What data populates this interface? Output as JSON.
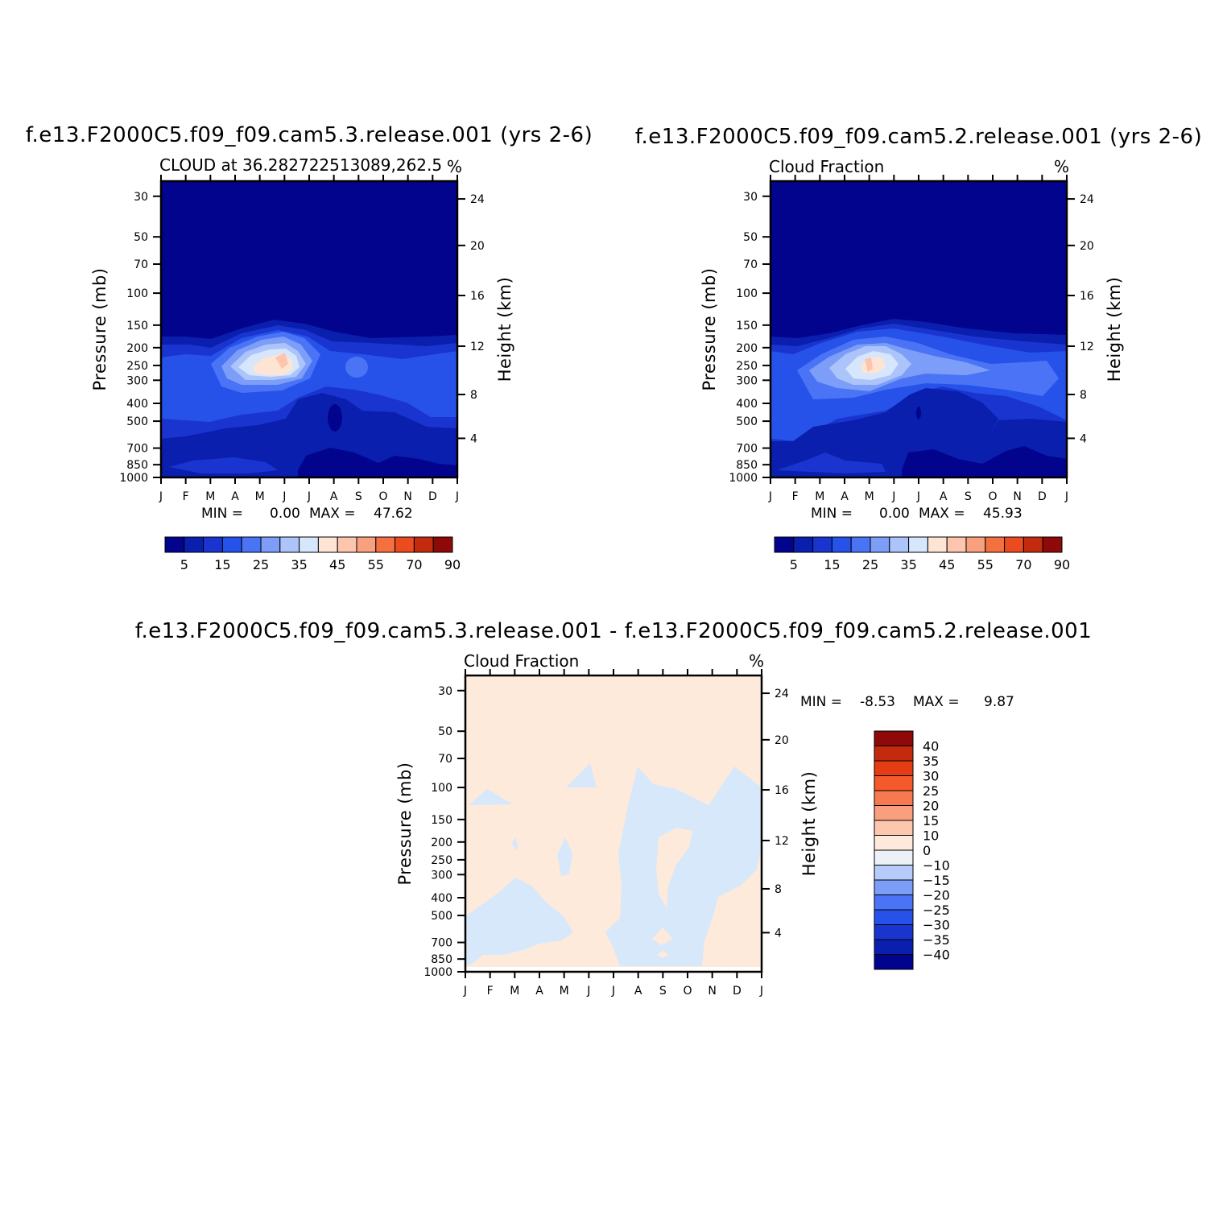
{
  "titles": {
    "panel1": "f.e13.F2000C5.f09_f09.cam5.3.release.001 (yrs 2-6)",
    "panel2": "f.e13.F2000C5.f09_f09.cam5.2.release.001 (yrs 2-6)",
    "diff": "f.e13.F2000C5.f09_f09.cam5.3.release.001 - f.e13.F2000C5.f09_f09.cam5.2.release.001"
  },
  "panels": [
    {
      "subtitle": "CLOUD at 36.282722513089,262.5",
      "units": "%",
      "stats": {
        "min_label": "MIN =",
        "min": "0.00",
        "max_label": "MAX =",
        "max": "47.62"
      }
    },
    {
      "subtitle": "Cloud Fraction",
      "units": "%",
      "stats": {
        "min_label": "MIN =",
        "min": "0.00",
        "max_label": "MAX =",
        "max": "45.93"
      }
    },
    {
      "subtitle": "Cloud Fraction",
      "units": "%",
      "stats": {
        "min_label": "MIN =",
        "min": "-8.53",
        "max_label": "MAX =",
        "max": "9.87"
      }
    }
  ],
  "axes": {
    "ylabel_left": "Pressure (mb)",
    "ylabel_right": "Height (km)",
    "months": [
      "J",
      "F",
      "M",
      "A",
      "M",
      "J",
      "J",
      "A",
      "S",
      "O",
      "N",
      "D",
      "J"
    ],
    "pressure_ticks": [
      "30",
      "50",
      "70",
      "100",
      "150",
      "200",
      "250",
      "300",
      "400",
      "500",
      "700",
      "850",
      "1000"
    ],
    "height_ticks": [
      "24",
      "20",
      "16",
      "12",
      "8",
      "4"
    ]
  },
  "colorbars": {
    "main_labels": [
      "5",
      "15",
      "25",
      "35",
      "45",
      "55",
      "70",
      "90"
    ],
    "main_colors": [
      "#03048e",
      "#0b1fae",
      "#1a35cf",
      "#2652ea",
      "#4a74f5",
      "#7c9ef8",
      "#adc4fb",
      "#d6e6fd",
      "#fee4d2",
      "#fdc5ad",
      "#f9a07e",
      "#f5703f",
      "#ec4a1f",
      "#c42b0e",
      "#8e0a08"
    ],
    "diff_labels": [
      "40",
      "35",
      "30",
      "25",
      "20",
      "15",
      "10",
      "0",
      "-10",
      "-15",
      "-20",
      "-25",
      "-30",
      "-35",
      "-40"
    ],
    "diff_colors": [
      "#8e0a08",
      "#c42b0e",
      "#e43d14",
      "#f55a2a",
      "#f7794f",
      "#f99e7e",
      "#fdc6ae",
      "#feeada",
      "#ecf1f8",
      "#b5ccfa",
      "#7c9ef8",
      "#4a74f5",
      "#2652ea",
      "#1a35cf",
      "#0b1fae",
      "#03048e"
    ]
  },
  "chart_data": [
    {
      "type": "heatmap",
      "title": "CLOUD at 36.282722513089,262.5",
      "x": [
        "J",
        "F",
        "M",
        "A",
        "M",
        "J",
        "J",
        "A",
        "S",
        "O",
        "N",
        "D",
        "J"
      ],
      "y_pressure_mb": [
        30,
        50,
        70,
        100,
        150,
        200,
        250,
        300,
        400,
        500,
        700,
        850,
        1000
      ],
      "value_range": [
        0.0,
        47.62
      ],
      "peak": {
        "month": "J",
        "pressure_mb": 230,
        "value": 47.62
      }
    },
    {
      "type": "heatmap",
      "title": "Cloud Fraction",
      "x": [
        "J",
        "F",
        "M",
        "A",
        "M",
        "J",
        "J",
        "A",
        "S",
        "O",
        "N",
        "D",
        "J"
      ],
      "y_pressure_mb": [
        30,
        50,
        70,
        100,
        150,
        200,
        250,
        300,
        400,
        500,
        700,
        850,
        1000
      ],
      "value_range": [
        0.0,
        45.93
      ],
      "peak": {
        "month": "M",
        "pressure_mb": 250,
        "value": 45.93
      }
    },
    {
      "type": "heatmap",
      "title": "Cloud Fraction",
      "x": [
        "J",
        "F",
        "M",
        "A",
        "M",
        "J",
        "J",
        "A",
        "S",
        "O",
        "N",
        "D",
        "J"
      ],
      "y_pressure_mb": [
        30,
        50,
        70,
        100,
        150,
        200,
        250,
        300,
        400,
        500,
        700,
        850,
        1000
      ],
      "value_range": [
        -8.53,
        9.87
      ]
    }
  ]
}
